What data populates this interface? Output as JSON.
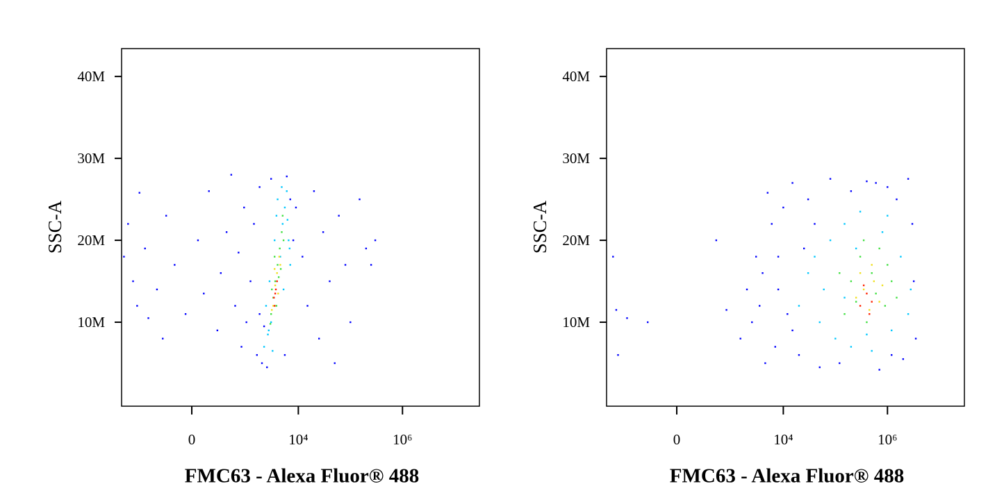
{
  "chart_data": [
    {
      "type": "scatter",
      "xscale": "biexponential",
      "xlabel": "FMC63 - Alexa Fluor® 488",
      "ylabel": "SSC-A",
      "xlim": [
        -2000,
        30000000
      ],
      "ylim": [
        -250000,
        43400000
      ],
      "xticks": [
        0,
        {
          "value": 10000,
          "label": "10⁴"
        },
        {
          "value": 1000000,
          "label": "10⁶"
        }
      ],
      "yticks": [
        {
          "value": 10000000,
          "label": "10M"
        },
        {
          "value": 20000000,
          "label": "20M"
        },
        {
          "value": 30000000,
          "label": "30M"
        },
        {
          "value": 40000000,
          "label": "40M"
        }
      ],
      "series": [
        {
          "color": "#0000ff",
          "x": [
            -1800,
            -1500,
            -1200,
            -1000,
            -900,
            -700,
            -600,
            -400,
            -300,
            -250,
            -150,
            -50,
            50,
            100,
            150,
            250,
            300,
            400,
            500,
            600,
            700,
            800,
            900,
            1000,
            1200,
            1400,
            1600,
            1800,
            2000,
            2200,
            9000,
            12000,
            15000,
            20000,
            25000,
            30000,
            40000,
            50000,
            60000,
            80000,
            100000,
            150000,
            200000,
            300000,
            250000,
            2500,
            3000,
            6000,
            8000,
            1800,
            5500,
            7000
          ],
          "y": [
            18000000,
            22000000,
            15000000,
            12000000,
            25800000,
            19000000,
            10500000,
            14000000,
            8000000,
            23000000,
            17000000,
            11000000,
            20000000,
            13500000,
            26000000,
            9000000,
            16000000,
            21000000,
            28000000,
            12000000,
            18500000,
            7000000,
            24000000,
            10000000,
            15000000,
            22000000,
            6000000,
            26500000,
            5000000,
            9500000,
            24000000,
            18000000,
            12000000,
            26000000,
            8000000,
            21000000,
            15000000,
            5000000,
            23000000,
            17000000,
            10000000,
            25000000,
            19000000,
            20000000,
            17000000,
            4500000,
            27500000,
            27800000,
            20000000,
            11000000,
            6000000,
            25000000
          ]
        },
        {
          "color": "#00c8ff",
          "x": [
            2200,
            2600,
            3000,
            2400,
            4500,
            5000,
            5500,
            6000,
            4000,
            3500,
            2800,
            6500,
            7000,
            3200,
            5200,
            6200,
            4800,
            2700,
            3800,
            6800
          ],
          "y": [
            7000000,
            8500000,
            10000000,
            12000000,
            18000000,
            22000000,
            24000000,
            26000000,
            25000000,
            20000000,
            15000000,
            20000000,
            17000000,
            6500000,
            14000000,
            22500000,
            26500000,
            9000000,
            23000000,
            19000000
          ]
        },
        {
          "color": "#40e040",
          "x": [
            3000,
            3300,
            3600,
            4000,
            4400,
            4800,
            3100,
            3800,
            4200,
            5200,
            2900,
            5000,
            3500,
            4600
          ],
          "y": [
            11000000,
            13000000,
            15000000,
            17000000,
            19000000,
            21000000,
            14000000,
            12000000,
            15500000,
            20000000,
            9800000,
            23000000,
            18000000,
            16500000
          ]
        },
        {
          "color": "#f0e020",
          "x": [
            3300,
            3600,
            3900,
            4300,
            3100,
            4100,
            4500,
            3500
          ],
          "y": [
            12000000,
            14500000,
            16000000,
            18000000,
            11500000,
            13500000,
            17000000,
            16500000
          ]
        },
        {
          "color": "#ff2000",
          "x": [
            3400,
            3700,
            3500,
            3900,
            3600
          ],
          "y": [
            13000000,
            14000000,
            12000000,
            15000000,
            13500000
          ]
        }
      ]
    },
    {
      "type": "scatter",
      "xscale": "biexponential",
      "xlabel": "FMC63 - Alexa Fluor® 488",
      "ylabel": "SSC-A",
      "xlim": [
        -2000,
        30000000
      ],
      "ylim": [
        -250000,
        43400000
      ],
      "xticks": [
        0,
        {
          "value": 10000,
          "label": "10⁴"
        },
        {
          "value": 1000000,
          "label": "10⁶"
        }
      ],
      "yticks": [
        {
          "value": 10000000,
          "label": "10M"
        },
        {
          "value": 20000000,
          "label": "20M"
        },
        {
          "value": 30000000,
          "label": "30M"
        },
        {
          "value": 40000000,
          "label": "40M"
        }
      ],
      "series": [
        {
          "color": "#0000ff",
          "x": [
            -1500,
            -1300,
            -1200,
            -800,
            -300,
            500,
            800,
            1500,
            2000,
            2500,
            3000,
            3500,
            4000,
            4500,
            5000,
            6000,
            7000,
            8000,
            10000,
            12000,
            15000,
            20000,
            25000,
            30000,
            50000,
            80000,
            120000,
            200000,
            400000,
            700000,
            1000000,
            1500000,
            2000000,
            3000000,
            3500000,
            3200000,
            2500000,
            1200000,
            600000,
            40000,
            15000,
            8000
          ],
          "y": [
            18000000,
            11500000,
            6000000,
            10500000,
            10000000,
            20000000,
            11500000,
            8000000,
            14000000,
            10000000,
            18000000,
            12000000,
            16000000,
            5000000,
            25800000,
            22000000,
            7000000,
            14000000,
            24000000,
            11000000,
            27000000,
            6000000,
            19000000,
            25000000,
            4500000,
            27500000,
            5000000,
            26000000,
            27200000,
            4200000,
            26500000,
            25000000,
            5500000,
            22000000,
            8000000,
            15000000,
            27500000,
            6000000,
            27000000,
            22000000,
            9000000,
            18000000
          ]
        },
        {
          "color": "#00c8ff",
          "x": [
            20000,
            30000,
            50000,
            80000,
            100000,
            150000,
            200000,
            300000,
            500000,
            800000,
            1200000,
            1800000,
            2500000,
            2800000,
            60000,
            250000,
            400000,
            1000000,
            150000,
            40000
          ],
          "y": [
            12000000,
            16000000,
            10000000,
            20000000,
            8000000,
            22000000,
            7000000,
            23500000,
            6500000,
            21000000,
            9000000,
            18000000,
            11000000,
            14000000,
            14000000,
            19000000,
            8500000,
            23000000,
            13000000,
            18000000
          ]
        },
        {
          "color": "#40e040",
          "x": [
            150000,
            200000,
            300000,
            400000,
            500000,
            700000,
            900000,
            1200000,
            1500000,
            250000,
            600000,
            350000,
            1000000,
            120000
          ],
          "y": [
            11000000,
            15000000,
            18000000,
            10000000,
            16000000,
            19000000,
            12000000,
            15000000,
            13000000,
            12500000,
            13500000,
            20000000,
            17000000,
            16000000
          ]
        },
        {
          "color": "#f0e020",
          "x": [
            250000,
            350000,
            450000,
            550000,
            700000,
            300000,
            500000,
            800000
          ],
          "y": [
            13000000,
            14000000,
            11500000,
            15000000,
            12500000,
            16000000,
            17000000,
            14500000
          ]
        },
        {
          "color": "#ff2000",
          "x": [
            300000,
            400000,
            450000,
            350000,
            500000
          ],
          "y": [
            12000000,
            13500000,
            11000000,
            14500000,
            12500000
          ]
        }
      ]
    }
  ]
}
